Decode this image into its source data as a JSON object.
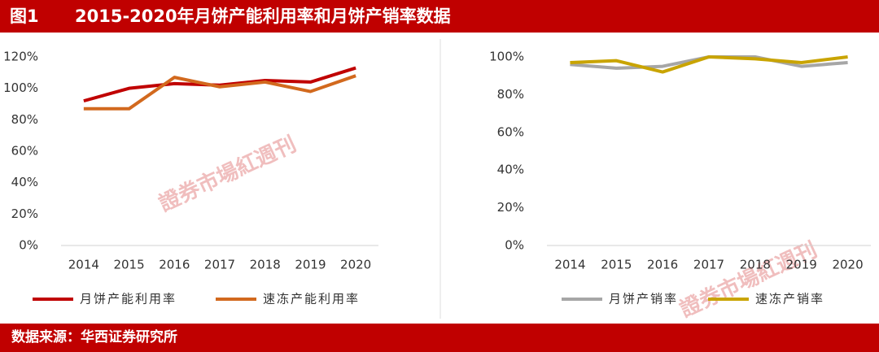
{
  "header": {
    "figure": "图1",
    "title": "2015-2020年月饼产能利用率和月饼产销率数据"
  },
  "footer": {
    "source": "数据来源：华西证券研究所"
  },
  "watermark": "證券市場紅週刊",
  "chart_data": [
    {
      "type": "line",
      "categories": [
        "2014",
        "2015",
        "2016",
        "2017",
        "2018",
        "2019",
        "2020"
      ],
      "series": [
        {
          "name": "月饼产能利用率",
          "color": "#c00000",
          "values": [
            92,
            100,
            103,
            102,
            105,
            104,
            113
          ]
        },
        {
          "name": "速冻产能利用率",
          "color": "#d2691e",
          "values": [
            87,
            87,
            107,
            101,
            104,
            98,
            108
          ]
        }
      ],
      "ylim": [
        0,
        120
      ],
      "yticks": [
        {
          "value": 0,
          "label": "0%"
        },
        {
          "value": 20,
          "label": "20%"
        },
        {
          "value": 40,
          "label": "40%"
        },
        {
          "value": 60,
          "label": "60%"
        },
        {
          "value": 80,
          "label": "80%"
        },
        {
          "value": 100,
          "label": "100%"
        },
        {
          "value": 120,
          "label": "120%"
        }
      ],
      "legend": "bottom"
    },
    {
      "type": "line",
      "categories": [
        "2014",
        "2015",
        "2016",
        "2017",
        "2018",
        "2019",
        "2020"
      ],
      "series": [
        {
          "name": "月饼产销率",
          "color": "#a6a6a6",
          "values": [
            96,
            94,
            95,
            100,
            100,
            95,
            97
          ]
        },
        {
          "name": "速冻产销率",
          "color": "#c9a400",
          "values": [
            97,
            98,
            92,
            100,
            99,
            97,
            100
          ]
        }
      ],
      "ylim": [
        0,
        100
      ],
      "yticks": [
        {
          "value": 0,
          "label": "0%"
        },
        {
          "value": 20,
          "label": "20%"
        },
        {
          "value": 40,
          "label": "40%"
        },
        {
          "value": 60,
          "label": "60%"
        },
        {
          "value": 80,
          "label": "80%"
        },
        {
          "value": 100,
          "label": "100%"
        }
      ],
      "legend": "bottom"
    }
  ]
}
